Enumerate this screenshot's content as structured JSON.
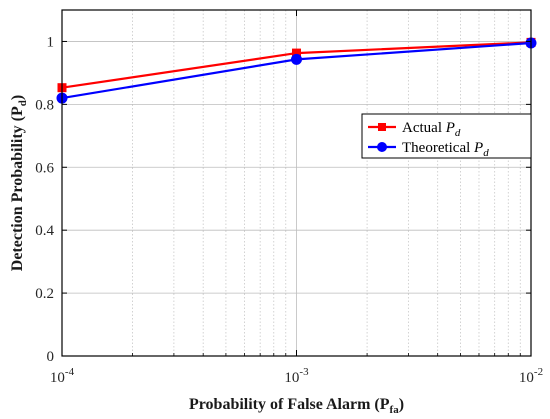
{
  "chart_data": {
    "type": "line",
    "x_scale": "log",
    "xlim": [
      0.0001,
      0.01
    ],
    "ylim": [
      0,
      1.1
    ],
    "grid": true,
    "legend_position": "right",
    "x": [
      0.0001,
      0.001,
      0.01
    ],
    "xtick_labels": [
      {
        "base": "10",
        "exp": "-4"
      },
      {
        "base": "10",
        "exp": "-3"
      },
      {
        "base": "10",
        "exp": "-2"
      }
    ],
    "ytick_labels": [
      "0",
      "0.2",
      "0.4",
      "0.6",
      "0.8",
      "1"
    ],
    "xlabel": {
      "main": "Probability of False Alarm (P",
      "sub": "fa",
      "close": ")"
    },
    "ylabel": {
      "main": "Detection Probability (P",
      "sub": "d",
      "close": ")"
    },
    "series": [
      {
        "label": "Actual",
        "label_var": "P",
        "label_sub": "d",
        "color": "#ff0000",
        "marker": "square",
        "values": [
          0.853,
          0.963,
          0.997
        ]
      },
      {
        "label": "Theoretical",
        "label_var": "P",
        "label_sub": "d",
        "color": "#0000ff",
        "marker": "circle",
        "values": [
          0.82,
          0.943,
          0.995
        ]
      }
    ]
  }
}
